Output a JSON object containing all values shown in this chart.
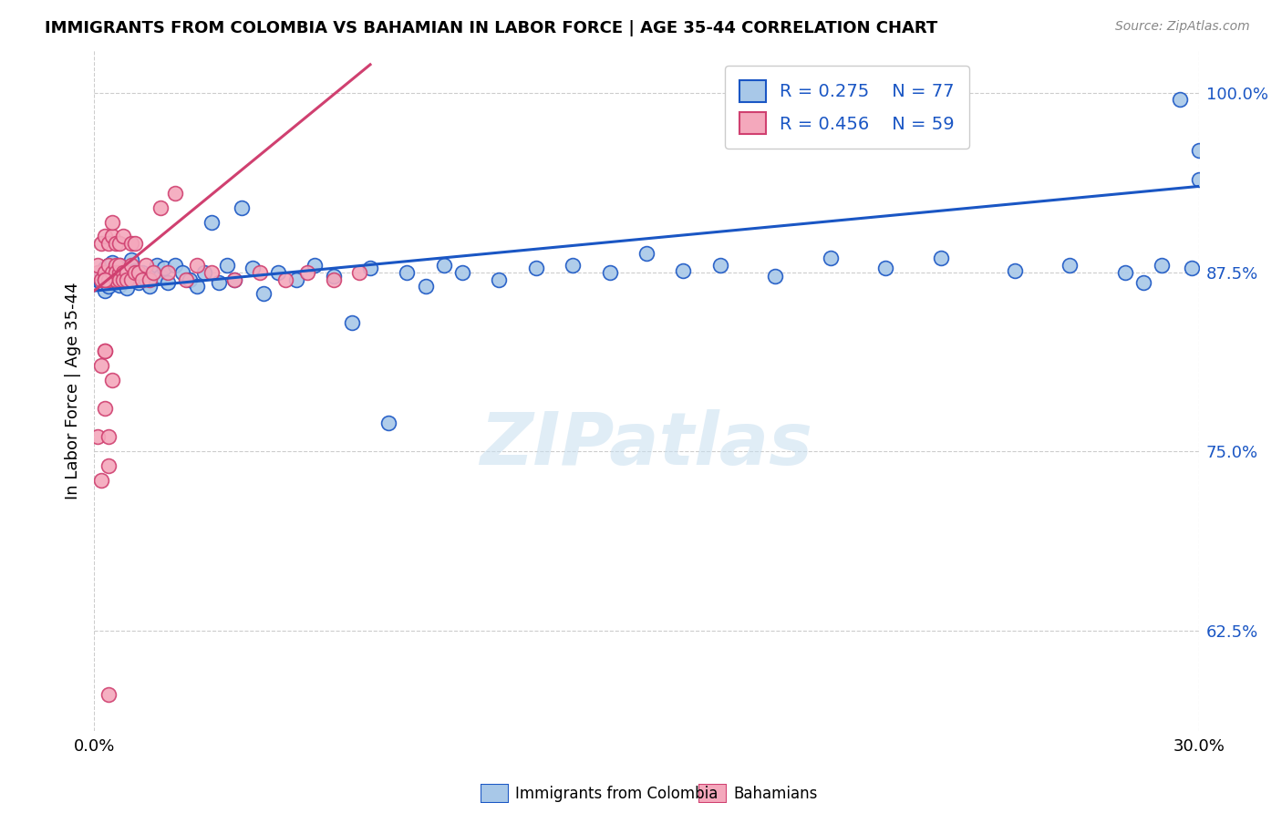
{
  "title": "IMMIGRANTS FROM COLOMBIA VS BAHAMIAN IN LABOR FORCE | AGE 35-44 CORRELATION CHART",
  "source": "Source: ZipAtlas.com",
  "ylabel": "In Labor Force | Age 35-44",
  "xlim": [
    0.0,
    0.3
  ],
  "ylim": [
    0.555,
    1.03
  ],
  "yticks": [
    0.625,
    0.75,
    0.875,
    1.0
  ],
  "ytick_labels": [
    "62.5%",
    "75.0%",
    "87.5%",
    "100.0%"
  ],
  "xticks": [
    0.0,
    0.3
  ],
  "xtick_labels": [
    "0.0%",
    "30.0%"
  ],
  "legend_r1": "0.275",
  "legend_n1": "77",
  "legend_r2": "0.456",
  "legend_n2": "59",
  "color_colombia": "#a8c8e8",
  "color_bahamian": "#f4a8bc",
  "line_color_colombia": "#1a56c4",
  "line_color_bahamian": "#d04070",
  "watermark_text": "ZIPatlas",
  "label_colombia": "Immigrants from Colombia",
  "label_bahamian": "Bahamians",
  "colombia_x": [
    0.001,
    0.001,
    0.002,
    0.002,
    0.003,
    0.003,
    0.004,
    0.004,
    0.005,
    0.005,
    0.005,
    0.006,
    0.006,
    0.006,
    0.007,
    0.007,
    0.007,
    0.008,
    0.008,
    0.009,
    0.009,
    0.01,
    0.01,
    0.011,
    0.011,
    0.012,
    0.013,
    0.014,
    0.015,
    0.016,
    0.017,
    0.018,
    0.019,
    0.02,
    0.022,
    0.024,
    0.026,
    0.028,
    0.03,
    0.032,
    0.034,
    0.036,
    0.038,
    0.04,
    0.043,
    0.046,
    0.05,
    0.055,
    0.06,
    0.065,
    0.07,
    0.075,
    0.08,
    0.085,
    0.09,
    0.095,
    0.1,
    0.11,
    0.12,
    0.13,
    0.14,
    0.15,
    0.16,
    0.17,
    0.185,
    0.2,
    0.215,
    0.23,
    0.25,
    0.265,
    0.28,
    0.285,
    0.29,
    0.295,
    0.298,
    0.3,
    0.3
  ],
  "colombia_y": [
    0.87,
    0.872,
    0.868,
    0.875,
    0.862,
    0.878,
    0.865,
    0.88,
    0.875,
    0.87,
    0.882,
    0.868,
    0.874,
    0.878,
    0.866,
    0.875,
    0.88,
    0.87,
    0.876,
    0.864,
    0.878,
    0.87,
    0.884,
    0.872,
    0.876,
    0.868,
    0.875,
    0.87,
    0.865,
    0.875,
    0.88,
    0.872,
    0.878,
    0.868,
    0.88,
    0.875,
    0.87,
    0.865,
    0.875,
    0.91,
    0.868,
    0.88,
    0.87,
    0.92,
    0.878,
    0.86,
    0.875,
    0.87,
    0.88,
    0.872,
    0.84,
    0.878,
    0.77,
    0.875,
    0.865,
    0.88,
    0.875,
    0.87,
    0.878,
    0.88,
    0.875,
    0.888,
    0.876,
    0.88,
    0.872,
    0.885,
    0.878,
    0.885,
    0.876,
    0.88,
    0.875,
    0.868,
    0.88,
    0.996,
    0.878,
    0.94,
    0.96
  ],
  "bahamian_x": [
    0.001,
    0.001,
    0.002,
    0.002,
    0.003,
    0.003,
    0.003,
    0.004,
    0.004,
    0.004,
    0.005,
    0.005,
    0.005,
    0.006,
    0.006,
    0.006,
    0.006,
    0.007,
    0.007,
    0.007,
    0.007,
    0.008,
    0.008,
    0.008,
    0.009,
    0.009,
    0.01,
    0.01,
    0.01,
    0.011,
    0.011,
    0.012,
    0.013,
    0.014,
    0.015,
    0.016,
    0.018,
    0.02,
    0.022,
    0.025,
    0.028,
    0.032,
    0.038,
    0.045,
    0.052,
    0.058,
    0.065,
    0.072,
    0.001,
    0.002,
    0.003,
    0.004,
    0.003,
    0.002,
    0.003,
    0.004,
    0.005,
    0.004,
    0.003
  ],
  "bahamian_y": [
    0.875,
    0.88,
    0.87,
    0.895,
    0.875,
    0.9,
    0.87,
    0.895,
    0.88,
    0.87,
    0.9,
    0.875,
    0.91,
    0.88,
    0.87,
    0.895,
    0.875,
    0.875,
    0.88,
    0.87,
    0.895,
    0.875,
    0.87,
    0.9,
    0.875,
    0.87,
    0.895,
    0.88,
    0.87,
    0.875,
    0.895,
    0.875,
    0.87,
    0.88,
    0.87,
    0.875,
    0.92,
    0.875,
    0.93,
    0.87,
    0.88,
    0.875,
    0.87,
    0.875,
    0.87,
    0.875,
    0.87,
    0.875,
    0.76,
    0.81,
    0.87,
    0.74,
    0.78,
    0.73,
    0.82,
    0.76,
    0.8,
    0.58,
    0.82
  ],
  "colombia_trend_x": [
    0.0,
    0.3
  ],
  "colombia_trend_y": [
    0.862,
    0.935
  ],
  "bahamian_trend_x": [
    0.0,
    0.075
  ],
  "bahamian_trend_y": [
    0.862,
    1.02
  ]
}
